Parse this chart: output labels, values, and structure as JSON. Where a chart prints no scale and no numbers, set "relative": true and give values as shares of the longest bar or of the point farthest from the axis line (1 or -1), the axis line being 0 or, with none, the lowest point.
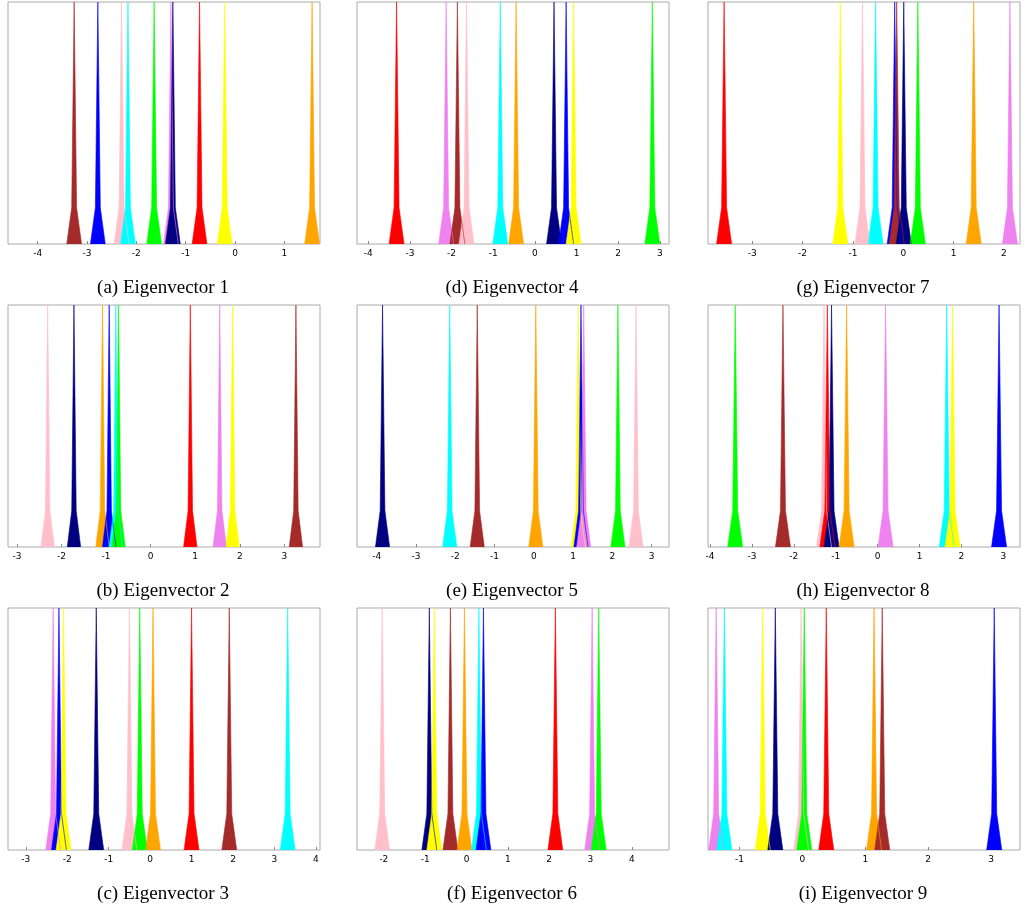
{
  "chart_data": [
    {
      "type": "area",
      "relative": true,
      "title": "(a) Eigenvector 1",
      "xlim": [
        -4.6,
        1.72
      ],
      "xticks": [
        -4,
        -3,
        -2,
        -1,
        0,
        1
      ],
      "series": [
        {
          "color": "#a52a2a",
          "x": [
            -3.41,
            -3.31,
            -3.26,
            -3.21,
            -3.11
          ],
          "values": [
            0,
            0.15,
            1,
            0.15,
            0
          ]
        },
        {
          "color": "#0000ff",
          "x": [
            -2.93,
            -2.83,
            -2.78,
            -2.73,
            -2.63
          ],
          "values": [
            0,
            0.15,
            1,
            0.15,
            0
          ]
        },
        {
          "color": "#ffc0cb",
          "x": [
            -2.45,
            -2.35,
            -2.3,
            -2.25,
            -2.15
          ],
          "values": [
            0,
            0.15,
            1,
            0.15,
            0
          ]
        },
        {
          "color": "#00ffff",
          "x": [
            -2.32,
            -2.22,
            -2.17,
            -2.12,
            -2.02
          ],
          "values": [
            0,
            0.15,
            1,
            0.15,
            0
          ]
        },
        {
          "color": "#00ff00",
          "x": [
            -1.79,
            -1.69,
            -1.64,
            -1.59,
            -1.49
          ],
          "values": [
            0,
            0.15,
            1,
            0.15,
            0
          ]
        },
        {
          "color": "#ee82ee",
          "x": [
            -1.45,
            -1.35,
            -1.3,
            -1.25,
            -1.15
          ],
          "values": [
            0,
            0.15,
            1,
            0.15,
            0
          ]
        },
        {
          "color": "#000080",
          "x": [
            -1.41,
            -1.31,
            -1.26,
            -1.21,
            -1.11
          ],
          "values": [
            0,
            0.15,
            1,
            0.15,
            0
          ]
        },
        {
          "color": "#ff0000",
          "x": [
            -0.87,
            -0.77,
            -0.72,
            -0.67,
            -0.57
          ],
          "values": [
            0,
            0.15,
            1,
            0.15,
            0
          ]
        },
        {
          "color": "#ffff00",
          "x": [
            -0.36,
            -0.26,
            -0.21,
            -0.16,
            -0.06
          ],
          "values": [
            0,
            0.15,
            1,
            0.15,
            0
          ]
        },
        {
          "color": "#ffa500",
          "x": [
            1.41,
            1.51,
            1.56,
            1.61,
            1.71
          ],
          "values": [
            0,
            0.15,
            1,
            0.15,
            0
          ]
        }
      ]
    },
    {
      "type": "area",
      "relative": true,
      "title": "(d) Eigenvector 4",
      "xlim": [
        -4.27,
        3.22
      ],
      "xticks": [
        -4,
        -3,
        -2,
        -1,
        0,
        1,
        2,
        3
      ],
      "series": [
        {
          "color": "#ff0000",
          "x": [
            -3.5,
            -3.38,
            -3.32,
            -3.26,
            -3.14
          ],
          "values": [
            0,
            0.15,
            1,
            0.15,
            0
          ]
        },
        {
          "color": "#ee82ee",
          "x": [
            -2.31,
            -2.19,
            -2.13,
            -2.07,
            -1.95
          ],
          "values": [
            0,
            0.15,
            1,
            0.15,
            0
          ]
        },
        {
          "color": "#a52a2a",
          "x": [
            -2.04,
            -1.92,
            -1.86,
            -1.8,
            -1.68
          ],
          "values": [
            0,
            0.15,
            1,
            0.15,
            0
          ]
        },
        {
          "color": "#ffc0cb",
          "x": [
            -1.82,
            -1.7,
            -1.64,
            -1.58,
            -1.46
          ],
          "values": [
            0,
            0.15,
            1,
            0.15,
            0
          ]
        },
        {
          "color": "#00ffff",
          "x": [
            -1.01,
            -0.89,
            -0.83,
            -0.77,
            -0.65
          ],
          "values": [
            0,
            0.15,
            1,
            0.15,
            0
          ]
        },
        {
          "color": "#ffa500",
          "x": [
            -0.63,
            -0.51,
            -0.45,
            -0.39,
            -0.27
          ],
          "values": [
            0,
            0.15,
            1,
            0.15,
            0
          ]
        },
        {
          "color": "#000080",
          "x": [
            0.28,
            0.4,
            0.46,
            0.52,
            0.64
          ],
          "values": [
            0,
            0.15,
            1,
            0.15,
            0
          ]
        },
        {
          "color": "#0000ff",
          "x": [
            0.57,
            0.69,
            0.75,
            0.81,
            0.93
          ],
          "values": [
            0,
            0.15,
            1,
            0.15,
            0
          ]
        },
        {
          "color": "#ffff00",
          "x": [
            0.75,
            0.87,
            0.93,
            0.99,
            1.11
          ],
          "values": [
            0,
            0.15,
            1,
            0.15,
            0
          ]
        },
        {
          "color": "#00ff00",
          "x": [
            2.64,
            2.76,
            2.82,
            2.88,
            3.0
          ],
          "values": [
            0,
            0.15,
            1,
            0.15,
            0
          ]
        }
      ]
    },
    {
      "type": "area",
      "relative": true,
      "title": "(g) Eigenvector 7",
      "xlim": [
        -3.88,
        2.32
      ],
      "xticks": [
        -3,
        -2,
        -1,
        0,
        1,
        2
      ],
      "series": [
        {
          "color": "#ff0000",
          "x": [
            -3.71,
            -3.61,
            -3.56,
            -3.51,
            -3.41
          ],
          "values": [
            0,
            0.15,
            1,
            0.15,
            0
          ]
        },
        {
          "color": "#ffff00",
          "x": [
            -1.4,
            -1.3,
            -1.25,
            -1.2,
            -1.1
          ],
          "values": [
            0,
            0.15,
            1,
            0.15,
            0
          ]
        },
        {
          "color": "#ffc0cb",
          "x": [
            -0.96,
            -0.86,
            -0.81,
            -0.76,
            -0.66
          ],
          "values": [
            0,
            0.15,
            1,
            0.15,
            0
          ]
        },
        {
          "color": "#00ffff",
          "x": [
            -0.7,
            -0.6,
            -0.55,
            -0.5,
            -0.4
          ],
          "values": [
            0,
            0.15,
            1,
            0.15,
            0
          ]
        },
        {
          "color": "#0000ff",
          "x": [
            -0.32,
            -0.22,
            -0.17,
            -0.12,
            -0.02
          ],
          "values": [
            0,
            0.15,
            1,
            0.15,
            0
          ]
        },
        {
          "color": "#a52a2a",
          "x": [
            -0.28,
            -0.18,
            -0.13,
            -0.08,
            0.02
          ],
          "values": [
            0,
            0.15,
            1,
            0.15,
            0
          ]
        },
        {
          "color": "#000080",
          "x": [
            -0.14,
            -0.04,
            0.01,
            0.06,
            0.16
          ],
          "values": [
            0,
            0.15,
            1,
            0.15,
            0
          ]
        },
        {
          "color": "#00ff00",
          "x": [
            0.14,
            0.24,
            0.29,
            0.34,
            0.44
          ],
          "values": [
            0,
            0.15,
            1,
            0.15,
            0
          ]
        },
        {
          "color": "#ffa500",
          "x": [
            1.25,
            1.35,
            1.4,
            1.45,
            1.55
          ],
          "values": [
            0,
            0.15,
            1,
            0.15,
            0
          ]
        },
        {
          "color": "#ee82ee",
          "x": [
            1.97,
            2.07,
            2.12,
            2.17,
            2.27
          ],
          "values": [
            0,
            0.15,
            1,
            0.15,
            0
          ]
        }
      ]
    },
    {
      "type": "area",
      "relative": true,
      "title": "(b) Eigenvector 2",
      "xlim": [
        -3.2,
        3.8
      ],
      "xticks": [
        -3,
        -2,
        -1,
        0,
        1,
        2,
        3
      ],
      "series": [
        {
          "color": "#ffc0cb",
          "x": [
            -2.46,
            -2.36,
            -2.31,
            -2.26,
            -2.16
          ],
          "values": [
            0,
            0.15,
            1,
            0.15,
            0
          ]
        },
        {
          "color": "#000080",
          "x": [
            -1.87,
            -1.77,
            -1.72,
            -1.67,
            -1.57
          ],
          "values": [
            0,
            0.15,
            1,
            0.15,
            0
          ]
        },
        {
          "color": "#ffa500",
          "x": [
            -1.23,
            -1.13,
            -1.08,
            -1.03,
            -0.93
          ],
          "values": [
            0,
            0.15,
            1,
            0.15,
            0
          ]
        },
        {
          "color": "#0000ff",
          "x": [
            -1.08,
            -0.98,
            -0.93,
            -0.88,
            -0.78
          ],
          "values": [
            0,
            0.15,
            1,
            0.15,
            0
          ]
        },
        {
          "color": "#00ffff",
          "x": [
            -0.93,
            -0.83,
            -0.78,
            -0.73,
            -0.63
          ],
          "values": [
            0,
            0.15,
            1,
            0.15,
            0
          ]
        },
        {
          "color": "#00ff00",
          "x": [
            -0.87,
            -0.77,
            -0.72,
            -0.67,
            -0.57
          ],
          "values": [
            0,
            0.15,
            1,
            0.15,
            0
          ]
        },
        {
          "color": "#ff0000",
          "x": [
            0.74,
            0.84,
            0.89,
            0.94,
            1.04
          ],
          "values": [
            0,
            0.15,
            1,
            0.15,
            0
          ]
        },
        {
          "color": "#ee82ee",
          "x": [
            1.4,
            1.5,
            1.55,
            1.6,
            1.7
          ],
          "values": [
            0,
            0.15,
            1,
            0.15,
            0
          ]
        },
        {
          "color": "#ffff00",
          "x": [
            1.69,
            1.79,
            1.84,
            1.89,
            1.99
          ],
          "values": [
            0,
            0.15,
            1,
            0.15,
            0
          ]
        },
        {
          "color": "#a52a2a",
          "x": [
            3.11,
            3.21,
            3.26,
            3.31,
            3.41
          ],
          "values": [
            0,
            0.15,
            1,
            0.15,
            0
          ]
        }
      ]
    },
    {
      "type": "area",
      "relative": true,
      "title": "(e) Eigenvector 5",
      "xlim": [
        -4.5,
        3.44
      ],
      "xticks": [
        -4,
        -3,
        -2,
        -1,
        0,
        1,
        2,
        3
      ],
      "series": [
        {
          "color": "#000080",
          "x": [
            -4.03,
            -3.91,
            -3.85,
            -3.79,
            -3.67
          ],
          "values": [
            0,
            0.15,
            1,
            0.15,
            0
          ]
        },
        {
          "color": "#00ffff",
          "x": [
            -2.32,
            -2.2,
            -2.14,
            -2.08,
            -1.96
          ],
          "values": [
            0,
            0.15,
            1,
            0.15,
            0
          ]
        },
        {
          "color": "#a52a2a",
          "x": [
            -1.62,
            -1.5,
            -1.44,
            -1.38,
            -1.26
          ],
          "values": [
            0,
            0.15,
            1,
            0.15,
            0
          ]
        },
        {
          "color": "#ffa500",
          "x": [
            -0.13,
            -0.01,
            0.05,
            0.11,
            0.23
          ],
          "values": [
            0,
            0.15,
            1,
            0.15,
            0
          ]
        },
        {
          "color": "#ffff00",
          "x": [
            0.95,
            1.07,
            1.13,
            1.19,
            1.31
          ],
          "values": [
            0,
            0.15,
            1,
            0.15,
            0
          ]
        },
        {
          "color": "#0000ff",
          "x": [
            1.02,
            1.14,
            1.2,
            1.26,
            1.38
          ],
          "values": [
            0,
            0.15,
            1,
            0.15,
            0
          ]
        },
        {
          "color": "#ee82ee",
          "x": [
            1.09,
            1.21,
            1.27,
            1.33,
            1.45
          ],
          "values": [
            0,
            0.15,
            1,
            0.15,
            0
          ]
        },
        {
          "color": "#00ff00",
          "x": [
            1.96,
            2.08,
            2.14,
            2.2,
            2.32
          ],
          "values": [
            0,
            0.15,
            1,
            0.15,
            0
          ]
        },
        {
          "color": "#ffc0cb",
          "x": [
            2.42,
            2.54,
            2.6,
            2.66,
            2.78
          ],
          "values": [
            0,
            0.15,
            1,
            0.15,
            0
          ]
        }
      ]
    },
    {
      "type": "area",
      "relative": true,
      "title": "(h) Eigenvector 8",
      "xlim": [
        -4.05,
        3.4
      ],
      "xticks": [
        -4,
        -3,
        -2,
        -1,
        0,
        1,
        2,
        3
      ],
      "series": [
        {
          "color": "#00ff00",
          "x": [
            -3.58,
            -3.46,
            -3.4,
            -3.34,
            -3.22
          ],
          "values": [
            0,
            0.15,
            1,
            0.15,
            0
          ]
        },
        {
          "color": "#a52a2a",
          "x": [
            -2.44,
            -2.32,
            -2.26,
            -2.2,
            -2.08
          ],
          "values": [
            0,
            0.15,
            1,
            0.15,
            0
          ]
        },
        {
          "color": "#ffc0cb",
          "x": [
            -1.46,
            -1.34,
            -1.28,
            -1.22,
            -1.1
          ],
          "values": [
            0,
            0.15,
            1,
            0.15,
            0
          ]
        },
        {
          "color": "#ff0000",
          "x": [
            -1.38,
            -1.26,
            -1.2,
            -1.14,
            -1.02
          ],
          "values": [
            0,
            0.15,
            1,
            0.15,
            0
          ]
        },
        {
          "color": "#000080",
          "x": [
            -1.28,
            -1.16,
            -1.1,
            -1.04,
            -0.92
          ],
          "values": [
            0,
            0.15,
            1,
            0.15,
            0
          ]
        },
        {
          "color": "#ffa500",
          "x": [
            -0.92,
            -0.8,
            -0.74,
            -0.68,
            -0.56
          ],
          "values": [
            0,
            0.15,
            1,
            0.15,
            0
          ]
        },
        {
          "color": "#ee82ee",
          "x": [
            0.01,
            0.13,
            0.19,
            0.25,
            0.37
          ],
          "values": [
            0,
            0.15,
            1,
            0.15,
            0
          ]
        },
        {
          "color": "#00ffff",
          "x": [
            1.47,
            1.59,
            1.65,
            1.71,
            1.83
          ],
          "values": [
            0,
            0.15,
            1,
            0.15,
            0
          ]
        },
        {
          "color": "#ffff00",
          "x": [
            1.61,
            1.73,
            1.79,
            1.85,
            1.97
          ],
          "values": [
            0,
            0.15,
            1,
            0.15,
            0
          ]
        },
        {
          "color": "#0000ff",
          "x": [
            2.72,
            2.84,
            2.9,
            2.96,
            3.08
          ],
          "values": [
            0,
            0.15,
            1,
            0.15,
            0
          ]
        }
      ]
    },
    {
      "type": "area",
      "relative": true,
      "title": "(c) Eigenvector 3",
      "xlim": [
        -3.43,
        4.1
      ],
      "xticks": [
        -3,
        -2,
        -1,
        0,
        1,
        2,
        3,
        4
      ],
      "series": [
        {
          "color": "#ee82ee",
          "x": [
            -2.52,
            -2.4,
            -2.34,
            -2.28,
            -2.16
          ],
          "values": [
            0,
            0.15,
            1,
            0.15,
            0
          ]
        },
        {
          "color": "#0000ff",
          "x": [
            -2.38,
            -2.26,
            -2.2,
            -2.14,
            -2.02
          ],
          "values": [
            0,
            0.15,
            1,
            0.15,
            0
          ]
        },
        {
          "color": "#ffff00",
          "x": [
            -2.27,
            -2.15,
            -2.09,
            -2.03,
            -1.91
          ],
          "values": [
            0,
            0.15,
            1,
            0.15,
            0
          ]
        },
        {
          "color": "#000080",
          "x": [
            -1.48,
            -1.36,
            -1.3,
            -1.24,
            -1.12
          ],
          "values": [
            0,
            0.15,
            1,
            0.15,
            0
          ]
        },
        {
          "color": "#ffc0cb",
          "x": [
            -0.68,
            -0.56,
            -0.5,
            -0.44,
            -0.32
          ],
          "values": [
            0,
            0.15,
            1,
            0.15,
            0
          ]
        },
        {
          "color": "#00ff00",
          "x": [
            -0.43,
            -0.31,
            -0.25,
            -0.19,
            -0.07
          ],
          "values": [
            0,
            0.15,
            1,
            0.15,
            0
          ]
        },
        {
          "color": "#ffa500",
          "x": [
            -0.11,
            0.01,
            0.07,
            0.13,
            0.25
          ],
          "values": [
            0,
            0.15,
            1,
            0.15,
            0
          ]
        },
        {
          "color": "#ff0000",
          "x": [
            0.82,
            0.94,
            1.0,
            1.06,
            1.18
          ],
          "values": [
            0,
            0.15,
            1,
            0.15,
            0
          ]
        },
        {
          "color": "#a52a2a",
          "x": [
            1.73,
            1.85,
            1.91,
            1.97,
            2.09
          ],
          "values": [
            0,
            0.15,
            1,
            0.15,
            0
          ]
        },
        {
          "color": "#00ffff",
          "x": [
            3.14,
            3.26,
            3.32,
            3.38,
            3.5
          ],
          "values": [
            0,
            0.15,
            1,
            0.15,
            0
          ]
        }
      ]
    },
    {
      "type": "area",
      "relative": true,
      "title": "(f) Eigenvector 6",
      "xlim": [
        -2.65,
        4.9
      ],
      "xticks": [
        -2,
        -1,
        0,
        1,
        2,
        3,
        4
      ],
      "series": [
        {
          "color": "#ffc0cb",
          "x": [
            -2.22,
            -2.1,
            -2.04,
            -1.98,
            -1.86
          ],
          "values": [
            0,
            0.15,
            1,
            0.15,
            0
          ]
        },
        {
          "color": "#000080",
          "x": [
            -1.08,
            -0.96,
            -0.9,
            -0.84,
            -0.72
          ],
          "values": [
            0,
            0.15,
            1,
            0.15,
            0
          ]
        },
        {
          "color": "#ffff00",
          "x": [
            -0.96,
            -0.84,
            -0.78,
            -0.72,
            -0.6
          ],
          "values": [
            0,
            0.15,
            1,
            0.15,
            0
          ]
        },
        {
          "color": "#a52a2a",
          "x": [
            -0.57,
            -0.45,
            -0.39,
            -0.33,
            -0.21
          ],
          "values": [
            0,
            0.15,
            1,
            0.15,
            0
          ]
        },
        {
          "color": "#ffa500",
          "x": [
            -0.23,
            -0.11,
            -0.05,
            0.01,
            0.13
          ],
          "values": [
            0,
            0.15,
            1,
            0.15,
            0
          ]
        },
        {
          "color": "#00ffff",
          "x": [
            0.12,
            0.24,
            0.3,
            0.36,
            0.48
          ],
          "values": [
            0,
            0.15,
            1,
            0.15,
            0
          ]
        },
        {
          "color": "#0000ff",
          "x": [
            0.23,
            0.35,
            0.41,
            0.47,
            0.59
          ],
          "values": [
            0,
            0.15,
            1,
            0.15,
            0
          ]
        },
        {
          "color": "#ff0000",
          "x": [
            1.97,
            2.09,
            2.15,
            2.21,
            2.33
          ],
          "values": [
            0,
            0.15,
            1,
            0.15,
            0
          ]
        },
        {
          "color": "#ee82ee",
          "x": [
            2.86,
            2.98,
            3.04,
            3.1,
            3.22
          ],
          "values": [
            0,
            0.15,
            1,
            0.15,
            0
          ]
        },
        {
          "color": "#00ff00",
          "x": [
            3.02,
            3.14,
            3.2,
            3.26,
            3.38
          ],
          "values": [
            0,
            0.15,
            1,
            0.15,
            0
          ]
        }
      ]
    },
    {
      "type": "area",
      "relative": true,
      "title": "(i) Eigenvector 9",
      "xlim": [
        -1.5,
        3.46
      ],
      "xticks": [
        -1,
        0,
        1,
        2,
        3
      ],
      "series": [
        {
          "color": "#ee82ee",
          "x": [
            -1.49,
            -1.41,
            -1.37,
            -1.33,
            -1.25
          ],
          "values": [
            0,
            0.15,
            1,
            0.15,
            0
          ]
        },
        {
          "color": "#00ffff",
          "x": [
            -1.36,
            -1.28,
            -1.24,
            -1.2,
            -1.12
          ],
          "values": [
            0,
            0.15,
            1,
            0.15,
            0
          ]
        },
        {
          "color": "#ffff00",
          "x": [
            -0.75,
            -0.67,
            -0.63,
            -0.59,
            -0.51
          ],
          "values": [
            0,
            0.15,
            1,
            0.15,
            0
          ]
        },
        {
          "color": "#000080",
          "x": [
            -0.55,
            -0.47,
            -0.43,
            -0.39,
            -0.31
          ],
          "values": [
            0,
            0.15,
            1,
            0.15,
            0
          ]
        },
        {
          "color": "#ffc0cb",
          "x": [
            -0.14,
            -0.06,
            -0.02,
            0.02,
            0.1
          ],
          "values": [
            0,
            0.15,
            1,
            0.15,
            0
          ]
        },
        {
          "color": "#00ff00",
          "x": [
            -0.09,
            -0.01,
            0.03,
            0.07,
            0.15
          ],
          "values": [
            0,
            0.15,
            1,
            0.15,
            0
          ]
        },
        {
          "color": "#ff0000",
          "x": [
            0.26,
            0.34,
            0.38,
            0.42,
            0.5
          ],
          "values": [
            0,
            0.15,
            1,
            0.15,
            0
          ]
        },
        {
          "color": "#ffa500",
          "x": [
            1.02,
            1.1,
            1.14,
            1.18,
            1.26
          ],
          "values": [
            0,
            0.15,
            1,
            0.15,
            0
          ]
        },
        {
          "color": "#a52a2a",
          "x": [
            1.15,
            1.23,
            1.27,
            1.31,
            1.39
          ],
          "values": [
            0,
            0.15,
            1,
            0.15,
            0
          ]
        },
        {
          "color": "#0000ff",
          "x": [
            2.93,
            3.01,
            3.05,
            3.09,
            3.17
          ],
          "values": [
            0,
            0.15,
            1,
            0.15,
            0
          ]
        }
      ]
    }
  ]
}
